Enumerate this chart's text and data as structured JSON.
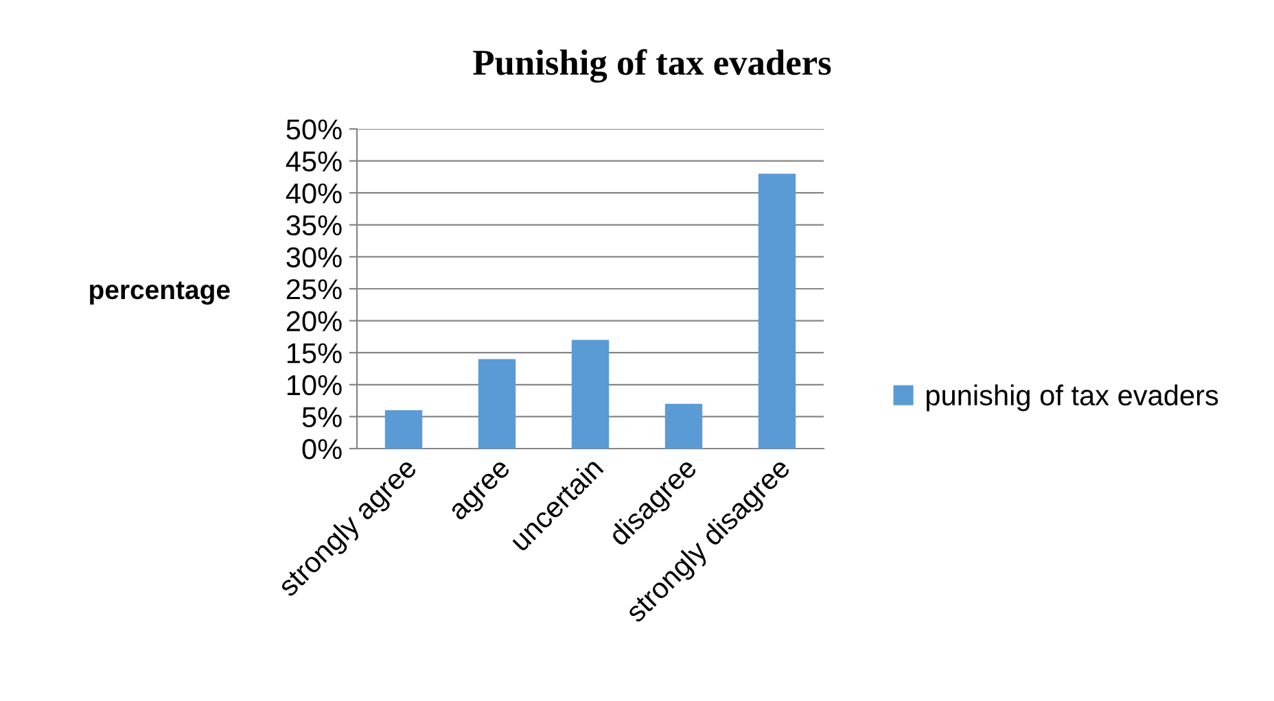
{
  "chart_data": {
    "type": "bar",
    "title": "Punishig of tax evaders",
    "ylabel": "percentage",
    "categories": [
      "strongly agree",
      "agree",
      "uncertain",
      "disagree",
      "strongly disagree"
    ],
    "series": [
      {
        "name": "punishig of tax evaders",
        "color": "#5b9bd5",
        "values": [
          6,
          14,
          17,
          7,
          43
        ]
      }
    ],
    "ylim": [
      0,
      50
    ],
    "yticks": [
      {
        "value": 0,
        "label": "0%"
      },
      {
        "value": 5,
        "label": "5%"
      },
      {
        "value": 10,
        "label": "10%"
      },
      {
        "value": 15,
        "label": "15%"
      },
      {
        "value": 20,
        "label": "20%"
      },
      {
        "value": 25,
        "label": "25%"
      },
      {
        "value": 30,
        "label": "30%"
      },
      {
        "value": 35,
        "label": "35%"
      },
      {
        "value": 40,
        "label": "40%"
      },
      {
        "value": 45,
        "label": "45%"
      },
      {
        "value": 50,
        "label": "50%"
      }
    ],
    "grid": "y",
    "legend": "right"
  }
}
